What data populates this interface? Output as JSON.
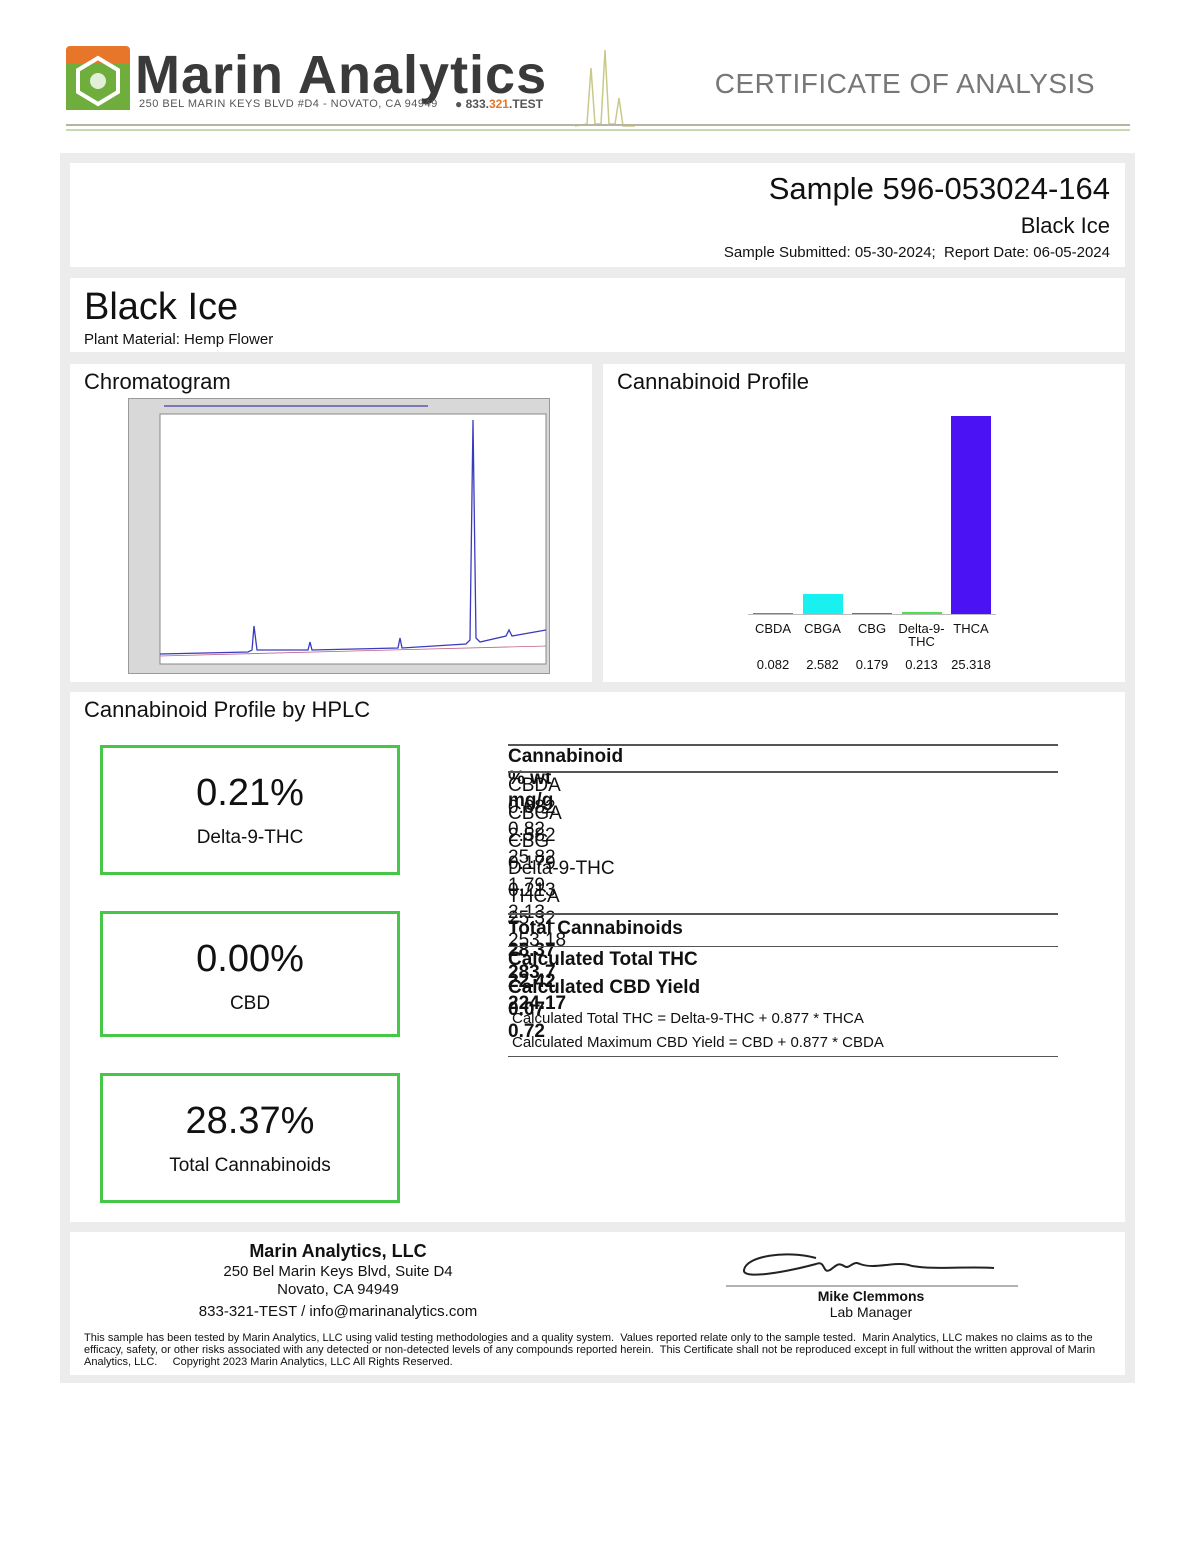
{
  "header": {
    "company": "Marin Analytics",
    "address": "250 BEL MARIN KEYS BLVD #D4 - NOVATO, CA 94949",
    "phone": [
      "833.",
      "321",
      ".TEST"
    ],
    "title": "CERTIFICATE OF ANALYSIS"
  },
  "sample": {
    "id": "Sample 596-053024-164",
    "name": "Black Ice",
    "dates": "Sample Submitted: 05-30-2024;  Report Date: 06-05-2024"
  },
  "product": {
    "name": "Black Ice",
    "material": "Plant Material: Hemp Flower"
  },
  "chromatogram": {
    "title": "Chromatogram"
  },
  "chart_data": {
    "type": "bar",
    "title": "Cannabinoid Profile",
    "categories": [
      "CBDA",
      "CBGA",
      "CBG",
      "Delta-9-THC",
      "THCA"
    ],
    "values": [
      0.082,
      2.582,
      0.179,
      0.213,
      25.318
    ],
    "colors": [
      "#2fa3a3",
      "#19f0f0",
      "#3a78d8",
      "#4fe04f",
      "#4b12f4"
    ]
  },
  "hplc": {
    "title": "Cannabinoid Profile by HPLC",
    "summary": [
      {
        "value": "0.21%",
        "label": "Delta-9-THC"
      },
      {
        "value": "0.00%",
        "label": "CBD"
      },
      {
        "value": "28.37%",
        "label": "Total Cannabinoids"
      }
    ],
    "table": {
      "columns": [
        "Cannabinoid",
        "% wt",
        "mg/g"
      ],
      "rows": [
        [
          "CBDA",
          "0.082",
          "0.82"
        ],
        [
          "CBGA",
          "2.582",
          "25.82"
        ],
        [
          "CBG",
          "0.179",
          "1.79"
        ],
        [
          "Delta-9-THC",
          "0.213",
          "2.13"
        ],
        [
          "THCA",
          "25.32",
          "253.18"
        ]
      ],
      "total": [
        "Total Cannabinoids",
        "28.37",
        "283.7"
      ],
      "calculated": [
        [
          "Calculated Total THC",
          "22.42",
          "224.17"
        ],
        [
          "Calculated CBD Yield",
          "0.07",
          "0.72"
        ]
      ],
      "notes": [
        "Calculated Total THC = Delta-9-THC + 0.877 * THCA",
        "Calculated Maximum CBD Yield = CBD + 0.877 * CBDA"
      ]
    }
  },
  "footer": {
    "company": "Marin Analytics, LLC",
    "address": [
      "250 Bel Marin Keys Blvd, Suite D4",
      "Novato, CA 94949"
    ],
    "contact": "833-321-TEST / info@marinanalytics.com",
    "signer": "Mike Clemmons",
    "role": "Lab Manager",
    "disclaimer": "This sample has been tested by Marin Analytics, LLC using valid testing methodologies and a quality system.  Values reported relate only to the sample tested.  Marin Analytics, LLC makes no claims as to the efficacy, safety, or other risks associated with any detected or non-detected levels of any compounds reported herein.  This Certificate shall not be reproduced except in full without the written approval of Marin Analytics, LLC.     Copyright 2023 Marin Analytics, LLC All Rights Reserved."
  }
}
